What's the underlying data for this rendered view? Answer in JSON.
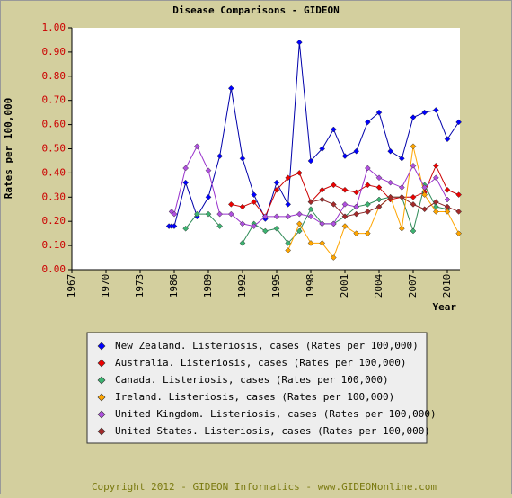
{
  "chart_data": {
    "type": "line",
    "title": "Disease Comparisons - GIDEON",
    "y_label": "Rates per 100,000",
    "x_label": "Year",
    "footer": "Copyright 2012 - GIDEON Informatics - www.GIDEONonline.com",
    "x": [
      1984,
      1985,
      1986,
      1987,
      1988,
      1989,
      1990,
      1991,
      1992,
      1993,
      1994,
      1995,
      1996,
      1997,
      1998,
      1999,
      2000,
      2001,
      2002,
      2003,
      2004,
      2005,
      2006,
      2007,
      2008,
      2009,
      2010,
      2011
    ],
    "xlim": [
      1967,
      2011
    ],
    "xticks": [
      1967,
      1970,
      1973,
      1986,
      1989,
      1992,
      1995,
      1998,
      2001,
      2004,
      2007,
      2010
    ],
    "ylim": [
      0,
      1
    ],
    "yticks": [
      {
        "value": 0,
        "label": "0.00"
      },
      {
        "value": 0.1,
        "label": "0.10"
      },
      {
        "value": 0.2,
        "label": "0.20"
      },
      {
        "value": 0.3,
        "label": "0.30"
      },
      {
        "value": 0.4,
        "label": "0.40"
      },
      {
        "value": 0.5,
        "label": "0.50"
      },
      {
        "value": 0.6,
        "label": "0.60"
      },
      {
        "value": 0.7,
        "label": "0.70"
      },
      {
        "value": 0.8,
        "label": "0.80"
      },
      {
        "value": 0.9,
        "label": "0.90"
      },
      {
        "value": 1,
        "label": "1.00"
      }
    ],
    "series": [
      {
        "name": "New Zealand. Listeriosis, cases (Rates per 100,000)",
        "color": "#0000aa",
        "marker": "#0000ff",
        "values": [
          0.18,
          0.18,
          0.18,
          0.36,
          0.22,
          0.3,
          0.47,
          0.75,
          0.46,
          0.31,
          0.21,
          0.36,
          0.27,
          0.94,
          0.45,
          0.5,
          0.58,
          0.47,
          0.49,
          0.61,
          0.65,
          0.49,
          0.46,
          0.63,
          0.65,
          0.66,
          0.54,
          0.61
        ]
      },
      {
        "name": "Australia. Listeriosis, cases (Rates per 100,000)",
        "color": "#cc0000",
        "marker": "#ee0000",
        "values": [
          null,
          null,
          null,
          null,
          null,
          null,
          null,
          0.27,
          0.26,
          0.28,
          0.22,
          0.33,
          0.38,
          0.4,
          0.28,
          0.33,
          0.35,
          0.33,
          0.32,
          0.35,
          0.34,
          0.29,
          0.3,
          0.3,
          0.32,
          0.43,
          0.33,
          0.31
        ]
      },
      {
        "name": "Canada. Listeriosis, cases (Rates per 100,000)",
        "color": "#2e8b57",
        "marker": "#3cb371",
        "values": [
          null,
          null,
          null,
          0.17,
          0.23,
          0.23,
          0.18,
          null,
          0.11,
          0.19,
          0.16,
          0.17,
          0.11,
          0.16,
          0.25,
          0.19,
          0.19,
          0.22,
          0.26,
          0.27,
          0.29,
          0.3,
          0.3,
          0.16,
          0.35,
          0.26,
          0.25,
          null
        ]
      },
      {
        "name": "Ireland. Listeriosis, cases (Rates per 100,000)",
        "color": "#ffa500",
        "marker": "#ffa500",
        "values": [
          null,
          null,
          null,
          null,
          null,
          null,
          null,
          null,
          null,
          null,
          null,
          null,
          0.08,
          0.19,
          0.11,
          0.11,
          0.05,
          0.18,
          0.15,
          0.15,
          0.26,
          0.3,
          0.17,
          0.51,
          0.31,
          0.24,
          0.24,
          0.15
        ]
      },
      {
        "name": "United Kingdom. Listeriosis, cases (Rates per 100,000)",
        "color": "#9932cc",
        "marker": "#b050e0",
        "values": [
          null,
          0.24,
          0.23,
          0.42,
          0.51,
          0.41,
          0.23,
          0.23,
          0.19,
          0.18,
          0.22,
          0.22,
          0.22,
          0.23,
          0.22,
          0.19,
          0.19,
          0.27,
          0.26,
          0.42,
          0.38,
          0.36,
          0.34,
          0.43,
          0.34,
          0.38,
          0.29,
          null
        ]
      },
      {
        "name": "United States. Listeriosis, cases (Rates per 100,000)",
        "color": "#8b2323",
        "marker": "#a52a2a",
        "values": [
          null,
          null,
          null,
          null,
          null,
          null,
          null,
          null,
          null,
          null,
          null,
          null,
          null,
          null,
          0.28,
          0.29,
          0.27,
          0.22,
          0.23,
          0.24,
          0.26,
          0.3,
          0.3,
          0.27,
          0.25,
          0.28,
          0.26,
          0.24
        ]
      }
    ],
    "grid": false
  }
}
